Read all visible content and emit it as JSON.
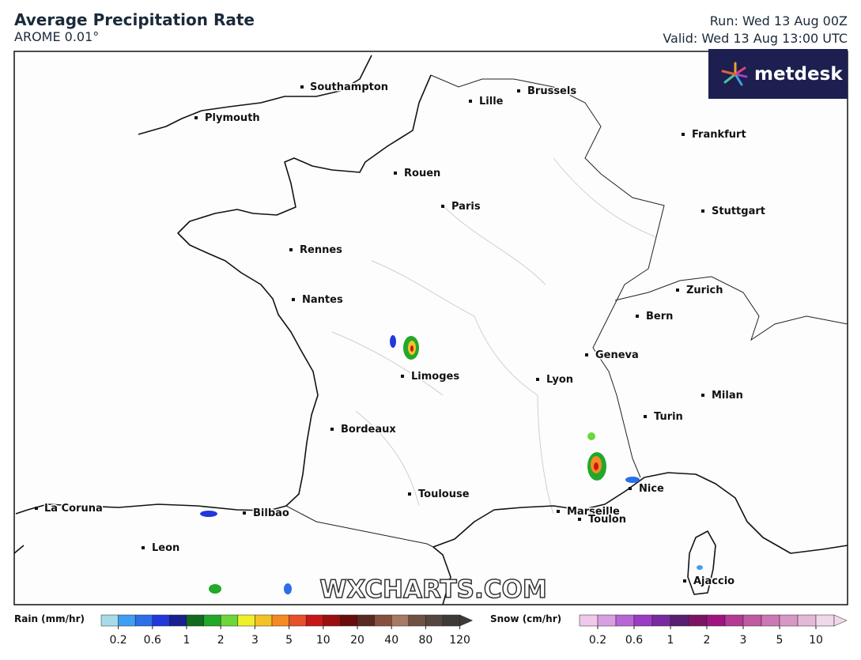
{
  "header": {
    "title": "Average Precipitation Rate",
    "model": "AROME 0.01°",
    "run": "Run: Wed 13 Aug 00Z",
    "valid": "Valid: Wed 13 Aug 13:00 UTC"
  },
  "logo": "metdesk",
  "watermark": "WXCHARTS.COM",
  "cities": [
    "Southampton",
    "Plymouth",
    "Lille",
    "Brussels",
    "Frankfurt",
    "Rouen",
    "Paris",
    "Stuttgart",
    "Rennes",
    "Nantes",
    "Zurich",
    "Bern",
    "Geneva",
    "Limoges",
    "Lyon",
    "Milan",
    "Turin",
    "Bordeaux",
    "Toulouse",
    "Nice",
    "Marseille",
    "Toulon",
    "La Coruna",
    "Bilbao",
    "Leon",
    "Ajaccio"
  ],
  "legend": {
    "rain": {
      "title": "Rain (mm/hr)",
      "colors": [
        "#a6dce9",
        "#3f9ff0",
        "#2c6fe8",
        "#2437dc",
        "#1a2090",
        "#116a1e",
        "#22a82a",
        "#6cd63a",
        "#eef02a",
        "#f4c226",
        "#f58a22",
        "#e8502a",
        "#c81616",
        "#9a0f0f",
        "#6a0c0c",
        "#5a2a22",
        "#87503e",
        "#a67a64",
        "#6e5244",
        "#55463f",
        "#3f3a38"
      ],
      "labels": [
        0.2,
        0.6,
        1,
        2,
        3,
        5,
        10,
        20,
        40,
        80,
        120
      ]
    },
    "snow": {
      "title": "Snow (cm/hr)",
      "colors": [
        "#f0c8ec",
        "#d8a0e0",
        "#b866d6",
        "#9a3cc4",
        "#7a2aa0",
        "#5a1e72",
        "#7c1466",
        "#a01482",
        "#b43a94",
        "#c05aa2",
        "#cc78b4",
        "#d898c6",
        "#e4b8d8",
        "#f0d8ea"
      ],
      "labels": [
        0.2,
        0.6,
        1,
        2,
        3,
        5,
        10
      ]
    }
  }
}
